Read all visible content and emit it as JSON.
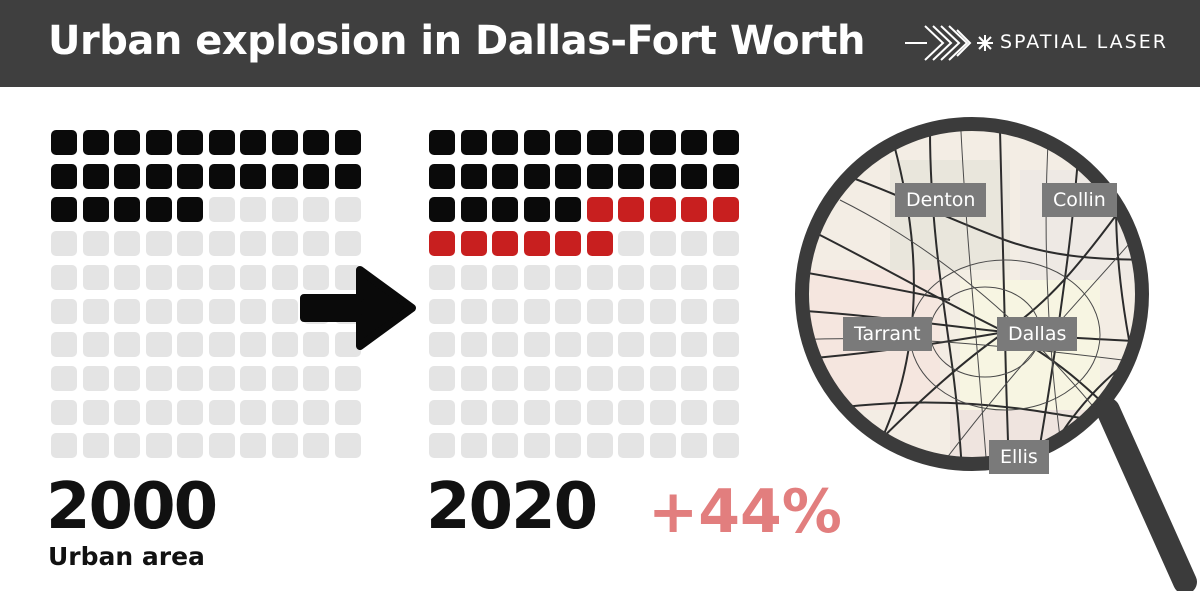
{
  "header": {
    "title": "Urban explosion in Dallas-Fort Worth",
    "logo_text": "SPATIAL LASER",
    "background": "#3f3f3f"
  },
  "chart_data": {
    "type": "waffle",
    "units_per_year": 100,
    "series": [
      {
        "year": "2000",
        "filled": 25,
        "new": 0
      },
      {
        "year": "2020",
        "filled": 25,
        "new": 11
      }
    ],
    "subtitle": "Urban area",
    "change_label": "+44%",
    "colors": {
      "existing": "#0a0a0a",
      "new": "#c81f1f",
      "empty": "#e4e4e4",
      "change": "#e27e7e"
    }
  },
  "map": {
    "counties": [
      "Denton",
      "Collin",
      "Tarrant",
      "Dallas",
      "Ellis"
    ]
  },
  "icons": {
    "arrow": "right-arrow-icon",
    "magnifier": "magnifying-glass-icon",
    "logo": "spatial-laser-logo-icon"
  }
}
